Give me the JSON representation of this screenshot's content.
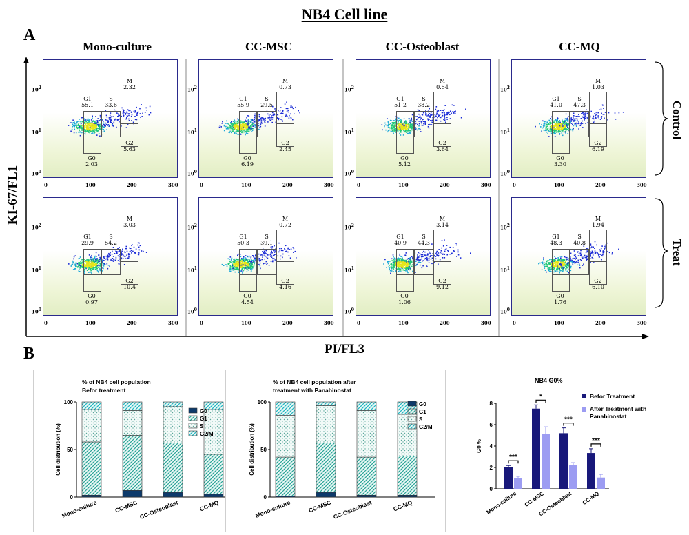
{
  "figure": {
    "title": "NB4 Cell line",
    "panel_a": "A",
    "panel_b": "B",
    "columns": [
      "Mono-culture",
      "CC-MSC",
      "CC-Osteoblast",
      "CC-MQ"
    ],
    "rows": [
      "Control",
      "Treat"
    ],
    "y_axis_label": "KI-67/FL1",
    "x_axis_label": "PI/FL3",
    "x_ticks": [
      "0",
      "100",
      "200",
      "300"
    ],
    "y_ticks": {
      "e2": "10",
      "e1": "10",
      "e0": "10",
      "p2": "2",
      "p1": "1",
      "p0": "0"
    },
    "gate_names": {
      "g1": "G1",
      "s": "S",
      "m": "M",
      "g2": "G2",
      "g0": "G0"
    }
  },
  "flow_panels": [
    {
      "column": "Mono-culture",
      "row": "Control",
      "G1": "55.1",
      "S": "33.6",
      "M": "2.32",
      "G2": "5.63",
      "G0": "2.03"
    },
    {
      "column": "CC-MSC",
      "row": "Control",
      "G1": "55.9",
      "S": "29.5",
      "M": "0.73",
      "G2": "2.45",
      "G0": "6.19"
    },
    {
      "column": "CC-Osteoblast",
      "row": "Control",
      "G1": "51.2",
      "S": "38.2",
      "M": "0.54",
      "G2": "3.64",
      "G0": "5.12"
    },
    {
      "column": "CC-MQ",
      "row": "Control",
      "G1": "41.0",
      "S": "47.3",
      "M": "1.03",
      "G2": "6.19",
      "G0": "3.30"
    },
    {
      "column": "Mono-culture",
      "row": "Treat",
      "G1": "29.9",
      "S": "54.2",
      "M": "3.03",
      "G2": "10.4",
      "G0": "0.97"
    },
    {
      "column": "CC-MSC",
      "row": "Treat",
      "G1": "50.3",
      "S": "39.1",
      "M": "0.72",
      "G2": "4.16",
      "G0": "4.54"
    },
    {
      "column": "CC-Osteoblast",
      "row": "Treat",
      "G1": "40.9",
      "S": "44.3",
      "M": "3.14",
      "G2": "9.12",
      "G0": "1.06"
    },
    {
      "column": "CC-MQ",
      "row": "Treat",
      "G1": "48.3",
      "S": "40.8",
      "M": "1.94",
      "G2": "6.10",
      "G0": "1.76"
    }
  ],
  "colors": {
    "G0": "#0d3a6b",
    "G1": "#36b4a8",
    "S": "#c7ebe4",
    "G2M": "#27bfc9",
    "before": "#18187a",
    "after": "#9c9cf2"
  },
  "chart_data": [
    {
      "type": "bar",
      "stacked": true,
      "title": "% of NB4 cell population Befor treatment",
      "title_lines": [
        "% of NB4 cell population",
        "Befor treatment"
      ],
      "ylabel": "Cell distribution (%)",
      "ylim": [
        0,
        100
      ],
      "yticks": [
        0,
        50,
        100
      ],
      "categories": [
        "Mono-culture",
        "CC-MSC",
        "CC-Osteoblast",
        "CC-MQ"
      ],
      "series": [
        {
          "name": "G0",
          "values": [
            2,
            7,
            5,
            3
          ]
        },
        {
          "name": "G1",
          "values": [
            56,
            58,
            52,
            42
          ]
        },
        {
          "name": "S",
          "values": [
            34,
            26,
            38,
            47
          ]
        },
        {
          "name": "G2/M",
          "values": [
            8,
            9,
            5,
            8
          ]
        }
      ]
    },
    {
      "type": "bar",
      "stacked": true,
      "title": "% of NB4 cell population after treatment with Panabinostat",
      "title_lines": [
        "% of NB4 cell population after",
        "treatment with Panabinostat"
      ],
      "ylabel": "Cell distribution (%)",
      "ylim": [
        0,
        100
      ],
      "yticks": [
        0,
        50,
        100
      ],
      "categories": [
        "Mono-culture",
        "CC-MSC",
        "CC-Osteoblast",
        "CC-MQ"
      ],
      "series": [
        {
          "name": "G0",
          "values": [
            1,
            5,
            2,
            2
          ]
        },
        {
          "name": "G1",
          "values": [
            41,
            52,
            40,
            41
          ]
        },
        {
          "name": "S",
          "values": [
            44,
            39,
            49,
            44
          ]
        },
        {
          "name": "G2/M",
          "values": [
            14,
            4,
            9,
            13
          ]
        }
      ]
    },
    {
      "type": "bar",
      "title": "NB4 G0%",
      "ylabel": "G0 %",
      "ylim": [
        0,
        8
      ],
      "yticks": [
        0,
        2,
        4,
        6,
        8
      ],
      "categories": [
        "Mono-culture",
        "CC-MSC",
        "CC-Osteoblast",
        "CC-MQ"
      ],
      "series": [
        {
          "name": "Befor Treatment",
          "values": [
            2.03,
            7.5,
            5.2,
            3.35
          ],
          "errors": [
            0.15,
            0.35,
            0.5,
            0.4
          ]
        },
        {
          "name": "After Treatment with Panabinostat",
          "values": [
            0.97,
            5.15,
            2.25,
            1.05
          ],
          "errors": [
            0.2,
            0.65,
            0.2,
            0.3
          ]
        }
      ],
      "legend_lines": [
        "Befor Treatment",
        "After Treatment with",
        "Panabinostat"
      ],
      "significance": [
        "***",
        "*",
        "***",
        "***"
      ]
    }
  ]
}
